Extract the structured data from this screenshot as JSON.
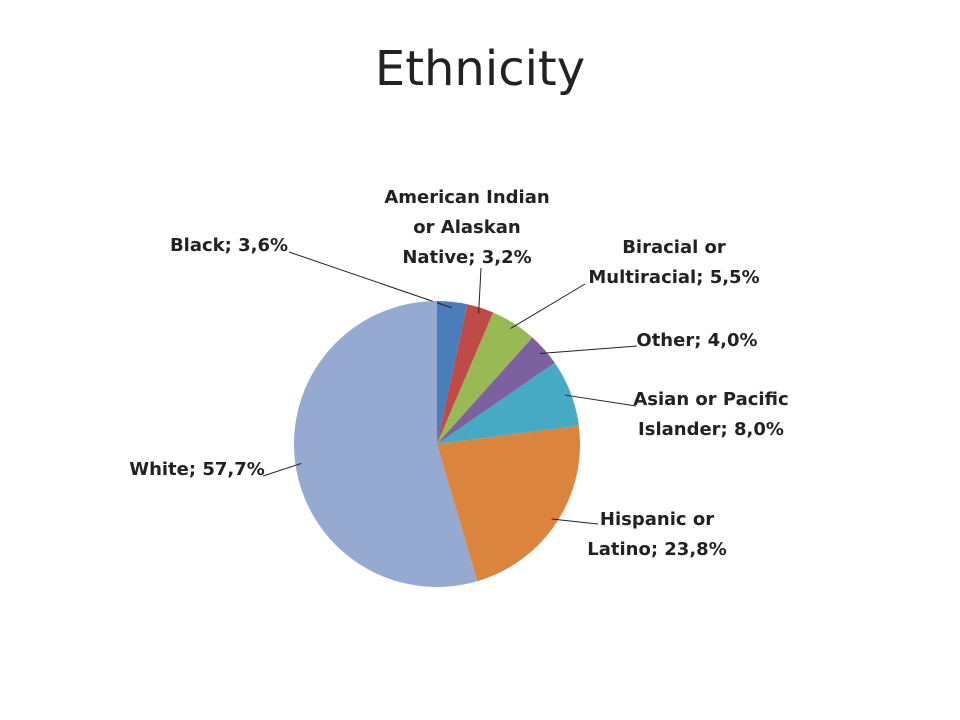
{
  "chart_data": {
    "type": "pie",
    "title": "Ethnicity",
    "values": [
      3.6,
      3.2,
      5.5,
      4.0,
      8.0,
      23.8,
      57.7
    ],
    "value_labels": [
      [
        "Black; 3,6%"
      ],
      [
        "American Indian",
        "or Alaskan",
        "Native; 3,2%"
      ],
      [
        "Biracial or",
        "Multiracial; 5,5%"
      ],
      [
        "Other; 4,0%"
      ],
      [
        "Asian or Pacific",
        "Islander; 8,0%"
      ],
      [
        "Hispanic or",
        "Latino; 23,8%"
      ],
      [
        "White; 57,7%"
      ]
    ],
    "colors": [
      "#4a7ebb",
      "#be4b48",
      "#98b954",
      "#7d60a0",
      "#46aac5",
      "#db843d",
      "#95a9d1"
    ]
  }
}
